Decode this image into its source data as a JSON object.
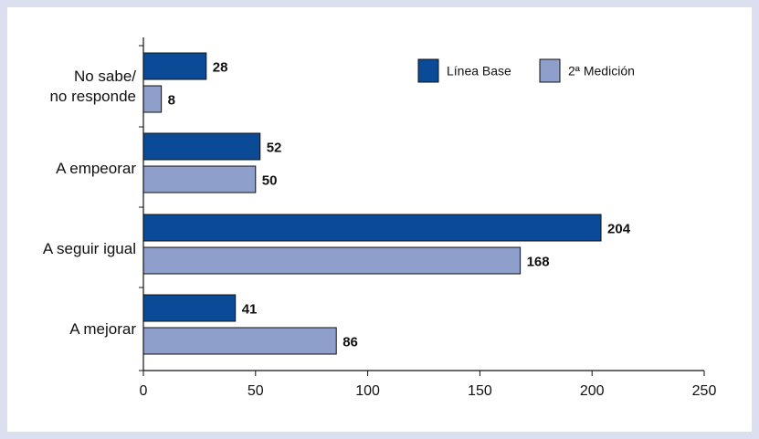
{
  "chart_data": {
    "type": "bar",
    "orientation": "horizontal",
    "categories": [
      [
        "No sabe/",
        "no responde"
      ],
      [
        "A empeorar"
      ],
      [
        "A seguir igual"
      ],
      [
        "A mejorar"
      ]
    ],
    "series": [
      {
        "name": "Línea Base",
        "values": [
          28,
          52,
          204,
          41
        ],
        "color": "#0b4a96"
      },
      {
        "name": "2ª Medición",
        "values": [
          8,
          50,
          168,
          86
        ],
        "color": "#8f9fcc"
      }
    ],
    "xlim": [
      0,
      250
    ],
    "xticks": [
      0,
      50,
      100,
      150,
      200,
      250
    ],
    "legend_position": "top-right",
    "grid": false
  }
}
